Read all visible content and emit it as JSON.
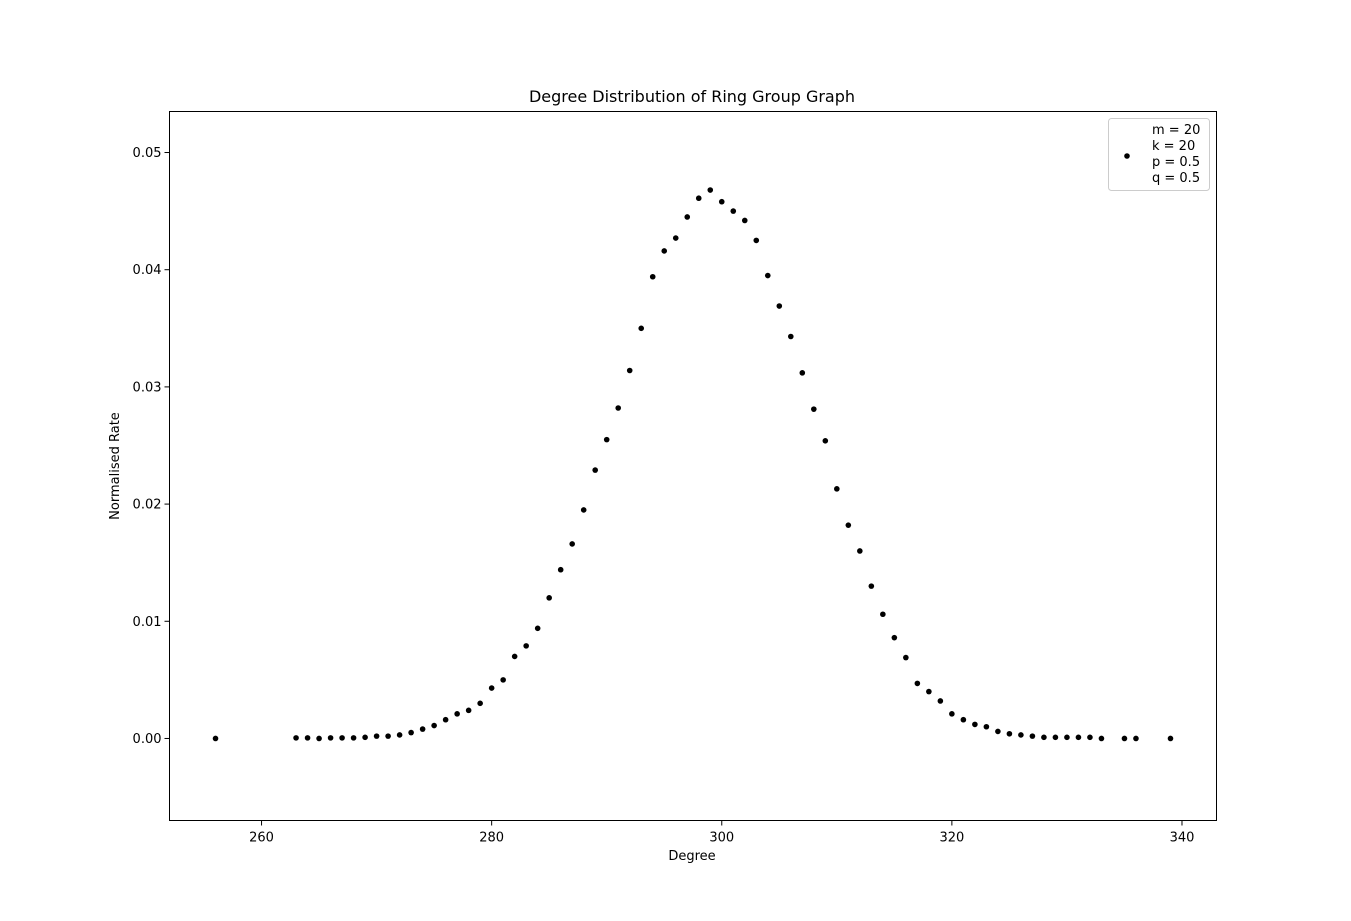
{
  "chart_data": {
    "type": "scatter",
    "title": "Degree Distribution of Ring Group Graph",
    "xlabel": "Degree",
    "ylabel": "Normalised Rate",
    "xlim": [
      252,
      343
    ],
    "ylim": [
      -0.007,
      0.0535
    ],
    "xticks": [
      260,
      280,
      300,
      320,
      340
    ],
    "xtick_labels": [
      "260",
      "280",
      "300",
      "320",
      "340"
    ],
    "yticks": [
      0.0,
      0.01,
      0.02,
      0.03,
      0.04,
      0.05
    ],
    "ytick_labels": [
      "0.00",
      "0.01",
      "0.02",
      "0.03",
      "0.04",
      "0.05"
    ],
    "grid": false,
    "legend_position": "top-right",
    "legend_lines": [
      "m = 20",
      "k = 20",
      "p = 0.5",
      "q = 0.5"
    ],
    "marker_color": "#000000",
    "series": [
      {
        "x": [
          256,
          263,
          264,
          265,
          266,
          267,
          268,
          269,
          270,
          271,
          272,
          273,
          274,
          275,
          276,
          277,
          278,
          279,
          280,
          281,
          282,
          283,
          284,
          285,
          286,
          287,
          288,
          289,
          290,
          291,
          292,
          293,
          294,
          295,
          296,
          297,
          298,
          299,
          300,
          301,
          302,
          303,
          304,
          305,
          306,
          307,
          308,
          309,
          310,
          311,
          312,
          313,
          314,
          315,
          316,
          317,
          318,
          319,
          320,
          321,
          322,
          323,
          324,
          325,
          326,
          327,
          328,
          329,
          330,
          331,
          332,
          333,
          335,
          336,
          339
        ],
        "y": [
          0.0,
          5e-05,
          5e-05,
          0.0,
          5e-05,
          5e-05,
          5e-05,
          0.0001,
          0.0002,
          0.0002,
          0.0003,
          0.0005,
          0.0008,
          0.0011,
          0.0016,
          0.0021,
          0.0024,
          0.003,
          0.0043,
          0.005,
          0.007,
          0.0079,
          0.0094,
          0.012,
          0.0144,
          0.0166,
          0.0195,
          0.0229,
          0.0255,
          0.0282,
          0.0314,
          0.035,
          0.0394,
          0.0416,
          0.0427,
          0.0445,
          0.0461,
          0.0468,
          0.0458,
          0.045,
          0.0442,
          0.0425,
          0.0395,
          0.0369,
          0.0343,
          0.0312,
          0.0281,
          0.0254,
          0.0213,
          0.0182,
          0.016,
          0.013,
          0.0106,
          0.0086,
          0.0069,
          0.0047,
          0.004,
          0.0032,
          0.0021,
          0.0016,
          0.0012,
          0.001,
          0.0006,
          0.0004,
          0.0003,
          0.0002,
          0.0001,
          0.0001,
          0.0001,
          0.0001,
          0.0001,
          0.0,
          0.0,
          0.0,
          0.0
        ]
      }
    ]
  }
}
